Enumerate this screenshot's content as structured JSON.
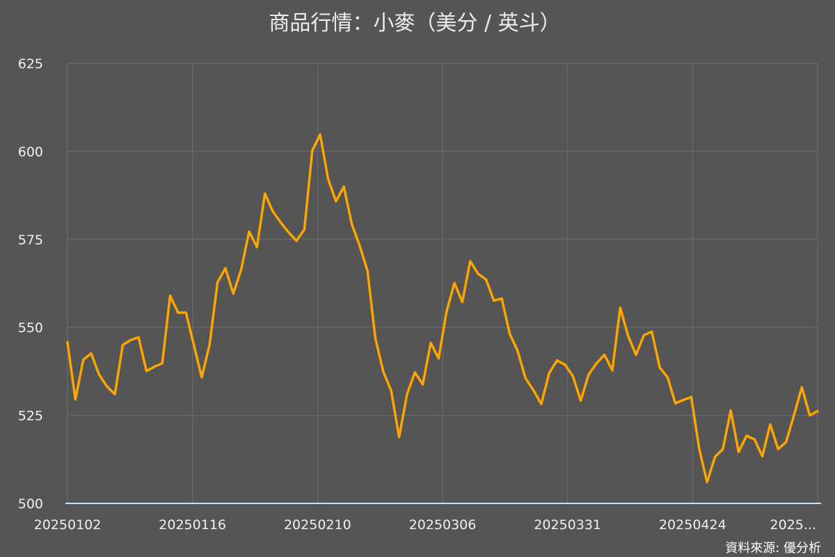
{
  "chart_data": {
    "type": "line",
    "title": "商品行情：小麥（美分 / 英斗）",
    "source": "資料來源: 優分析",
    "colors": {
      "line": "#FFA500",
      "background": "#555555",
      "grid": "#6e6e6e",
      "axis": "#cfe0f0"
    },
    "ylim": [
      500,
      625
    ],
    "yticks": [
      500,
      525,
      550,
      575,
      600,
      625
    ],
    "xtick_labels": [
      "20250102",
      "20250116",
      "20250210",
      "20250306",
      "20250331",
      "20250424",
      "2025..."
    ],
    "grid": true,
    "series": [
      {
        "values": [
          545.8,
          529.5,
          540.8,
          542.6,
          536.6,
          533.2,
          531.0,
          545.0,
          546.4,
          547.2,
          537.6,
          538.8,
          539.8,
          559.0,
          554.2,
          554.2,
          545.0,
          535.8,
          545.2,
          562.8,
          566.8,
          559.6,
          566.4,
          577.2,
          572.8,
          588.0,
          583.0,
          579.8,
          577.0,
          574.6,
          577.8,
          600.2,
          604.8,
          592.2,
          585.8,
          590.0,
          579.4,
          573.2,
          566.0,
          546.8,
          537.4,
          532.0,
          518.8,
          531.0,
          537.2,
          533.8,
          545.6,
          541.2,
          554.4,
          562.6,
          557.2,
          568.8,
          565.2,
          563.6,
          557.6,
          558.2,
          548.2,
          543.4,
          535.6,
          532.2,
          528.2,
          537.0,
          540.6,
          539.4,
          536.2,
          529.2,
          536.6,
          539.8,
          542.2,
          537.8,
          555.6,
          547.6,
          542.2,
          547.8,
          548.8,
          538.6,
          535.8,
          528.4,
          529.4,
          530.2,
          515.6,
          506.0,
          513.2,
          515.4,
          526.4,
          514.6,
          519.2,
          518.2,
          513.4,
          522.4,
          515.4,
          517.4,
          525.0,
          533.0,
          525.0,
          526.2
        ]
      }
    ]
  }
}
